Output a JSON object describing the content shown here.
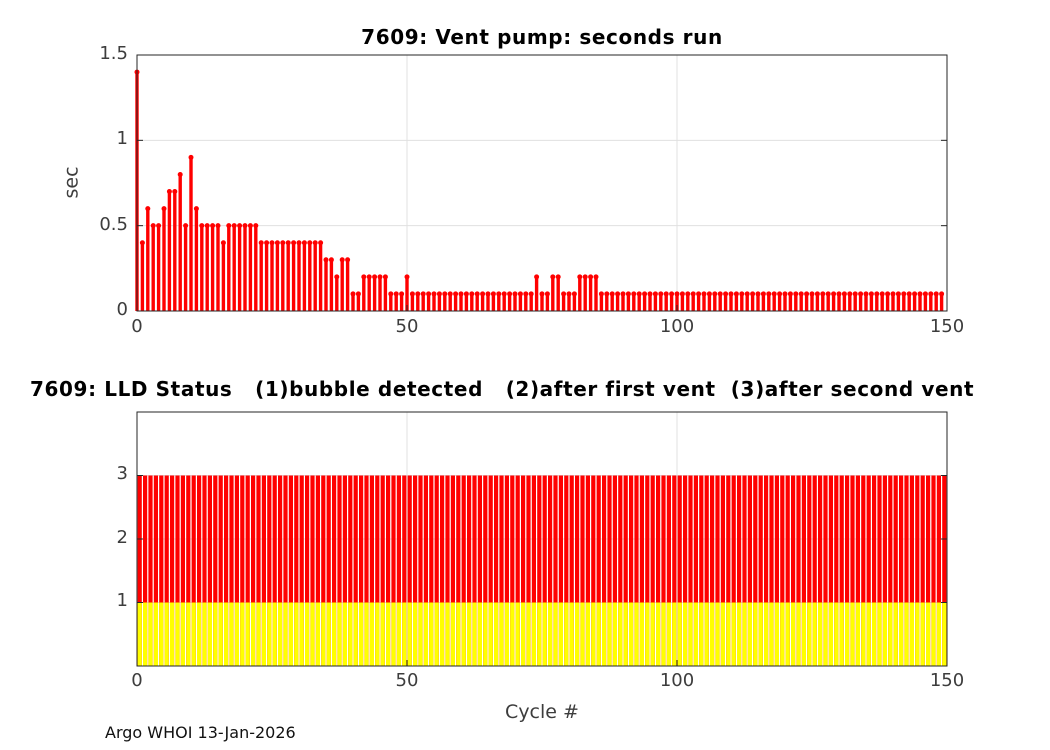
{
  "figure": {
    "footer": "Argo WHOI 13-Jan-2026",
    "colors": {
      "red": "#ff0000",
      "yellow": "#ffff00",
      "axis": "#262626",
      "grid": "#e0e0e0",
      "tick_text": "#3d3d3d",
      "title_text": "#000000"
    }
  },
  "chart_data": [
    {
      "type": "bar",
      "style": "stem-with-marker",
      "title": "7609: Vent pump: seconds run",
      "xlabel": "",
      "ylabel": "sec",
      "xlim": [
        0,
        150
      ],
      "ylim": [
        0,
        1.5
      ],
      "grid": true,
      "xticks": [
        0,
        50,
        100,
        150
      ],
      "yticks": [
        0,
        0.5,
        1,
        1.5
      ],
      "xtick_labels": [
        "0",
        "50",
        "100",
        "150"
      ],
      "ytick_labels": [
        "0",
        "0.5",
        "1",
        "1.5"
      ],
      "x_is_cycle_number": true,
      "cycles": {
        "from": 0,
        "to": 149
      },
      "color": "#ff0000",
      "values": [
        1.4,
        0.4,
        0.6,
        0.5,
        0.5,
        0.6,
        0.7,
        0.7,
        0.8,
        0.5,
        0.9,
        0.6,
        0.5,
        0.5,
        0.5,
        0.5,
        0.4,
        0.5,
        0.5,
        0.5,
        0.5,
        0.5,
        0.5,
        0.4,
        0.4,
        0.4,
        0.4,
        0.4,
        0.4,
        0.4,
        0.4,
        0.4,
        0.4,
        0.4,
        0.4,
        0.3,
        0.3,
        0.2,
        0.3,
        0.3,
        0.1,
        0.1,
        0.2,
        0.2,
        0.2,
        0.2,
        0.2,
        0.1,
        0.1,
        0.1,
        0.2,
        0.1,
        0.1,
        0.1,
        0.1,
        0.1,
        0.1,
        0.1,
        0.1,
        0.1,
        0.1,
        0.1,
        0.1,
        0.1,
        0.1,
        0.1,
        0.1,
        0.1,
        0.1,
        0.1,
        0.1,
        0.1,
        0.1,
        0.1,
        0.2,
        0.1,
        0.1,
        0.2,
        0.2,
        0.1,
        0.1,
        0.1,
        0.2,
        0.2,
        0.2,
        0.2,
        0.1,
        0.1,
        0.1,
        0.1,
        0.1,
        0.1,
        0.1,
        0.1,
        0.1,
        0.1,
        0.1,
        0.1,
        0.1,
        0.1,
        0.1,
        0.1,
        0.1,
        0.1,
        0.1,
        0.1,
        0.1,
        0.1,
        0.1,
        0.1,
        0.1,
        0.1,
        0.1,
        0.1,
        0.1,
        0.1,
        0.1,
        0.1,
        0.1,
        0.1,
        0.1,
        0.1,
        0.1,
        0.1,
        0.1,
        0.1,
        0.1,
        0.1,
        0.1,
        0.1,
        0.1,
        0.1,
        0.1,
        0.1,
        0.1,
        0.1,
        0.1,
        0.1,
        0.1,
        0.1,
        0.1,
        0.1,
        0.1,
        0.1,
        0.1,
        0.1,
        0.1,
        0.1,
        0.1,
        0.1
      ]
    },
    {
      "type": "bar",
      "style": "overlaid-bars",
      "title": "7609: LLD Status   (1)bubble detected   (2)after first vent  (3)after second vent",
      "xlabel": "Cycle #",
      "ylabel": "",
      "xlim": [
        0,
        150
      ],
      "ylim": [
        0,
        4
      ],
      "grid": true,
      "xticks": [
        0,
        50,
        100,
        150
      ],
      "yticks": [
        1,
        2,
        3
      ],
      "xtick_labels": [
        "0",
        "50",
        "100",
        "150"
      ],
      "ytick_labels": [
        "1",
        "2",
        "3"
      ],
      "x_is_cycle_number": true,
      "cycles": {
        "from": 0,
        "to": 149
      },
      "series": [
        {
          "name": "lld-status-after-second-vent",
          "color": "#ff0000",
          "values": [
            3,
            3,
            3,
            3,
            3,
            3,
            3,
            3,
            3,
            3,
            3,
            3,
            3,
            3,
            3,
            3,
            3,
            3,
            3,
            3,
            3,
            3,
            3,
            3,
            3,
            3,
            3,
            3,
            3,
            3,
            3,
            3,
            3,
            3,
            3,
            3,
            3,
            3,
            3,
            3,
            3,
            3,
            3,
            3,
            3,
            3,
            3,
            3,
            3,
            3,
            3,
            3,
            3,
            3,
            3,
            3,
            3,
            3,
            3,
            3,
            3,
            3,
            3,
            3,
            3,
            3,
            3,
            3,
            3,
            3,
            3,
            3,
            3,
            3,
            3,
            3,
            3,
            3,
            3,
            3,
            3,
            3,
            3,
            3,
            3,
            3,
            3,
            3,
            3,
            3,
            3,
            3,
            3,
            3,
            3,
            3,
            3,
            3,
            3,
            3,
            3,
            3,
            3,
            3,
            3,
            3,
            3,
            3,
            3,
            3,
            3,
            3,
            3,
            3,
            3,
            3,
            3,
            3,
            3,
            3,
            3,
            3,
            3,
            3,
            3,
            3,
            3,
            3,
            3,
            3,
            3,
            3,
            3,
            3,
            3,
            3,
            3,
            3,
            3,
            3,
            3,
            3,
            3,
            3,
            3,
            3,
            3,
            3,
            3,
            3
          ]
        },
        {
          "name": "lld-status-bubble-detected",
          "color": "#ffff00",
          "values": [
            1,
            1,
            1,
            1,
            1,
            1,
            1,
            1,
            1,
            1,
            1,
            1,
            1,
            1,
            1,
            1,
            1,
            1,
            1,
            1,
            1,
            1,
            1,
            1,
            1,
            1,
            1,
            1,
            1,
            1,
            1,
            1,
            1,
            1,
            1,
            1,
            1,
            1,
            1,
            1,
            1,
            1,
            1,
            1,
            1,
            1,
            1,
            1,
            1,
            1,
            1,
            1,
            1,
            1,
            1,
            1,
            1,
            1,
            1,
            1,
            1,
            1,
            1,
            1,
            1,
            1,
            1,
            1,
            1,
            1,
            1,
            1,
            1,
            1,
            1,
            1,
            1,
            1,
            1,
            1,
            1,
            1,
            1,
            1,
            1,
            1,
            1,
            1,
            1,
            1,
            1,
            1,
            1,
            1,
            1,
            1,
            1,
            1,
            1,
            1,
            1,
            1,
            1,
            1,
            1,
            1,
            1,
            1,
            1,
            1,
            1,
            1,
            1,
            1,
            1,
            1,
            1,
            1,
            1,
            1,
            1,
            1,
            1,
            1,
            1,
            1,
            1,
            1,
            1,
            1,
            1,
            1,
            1,
            1,
            1,
            1,
            1,
            1,
            1,
            1,
            1,
            1,
            1,
            1,
            1,
            1,
            1,
            1,
            1,
            1
          ]
        }
      ]
    }
  ]
}
